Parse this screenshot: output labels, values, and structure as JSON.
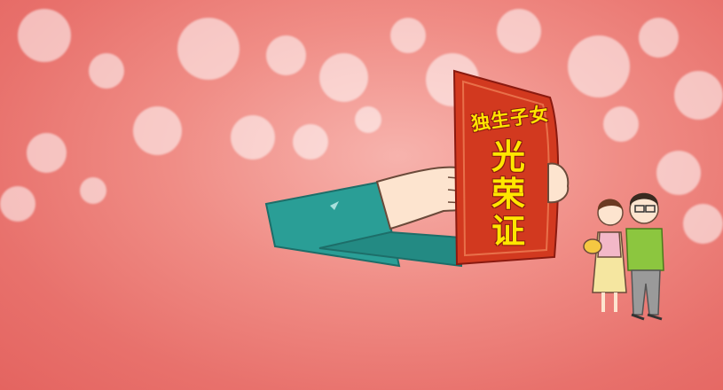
{
  "certificate": {
    "title_top": "独生子女",
    "title_main": [
      "光",
      "荣",
      "证"
    ]
  },
  "colors": {
    "background": "#ee8a84",
    "certificate_red": "#d2391f",
    "text_yellow": "#ffe600",
    "sleeve_teal": "#2a9e96"
  },
  "icons": [
    "hand-holding-certificate",
    "family-illustration"
  ]
}
